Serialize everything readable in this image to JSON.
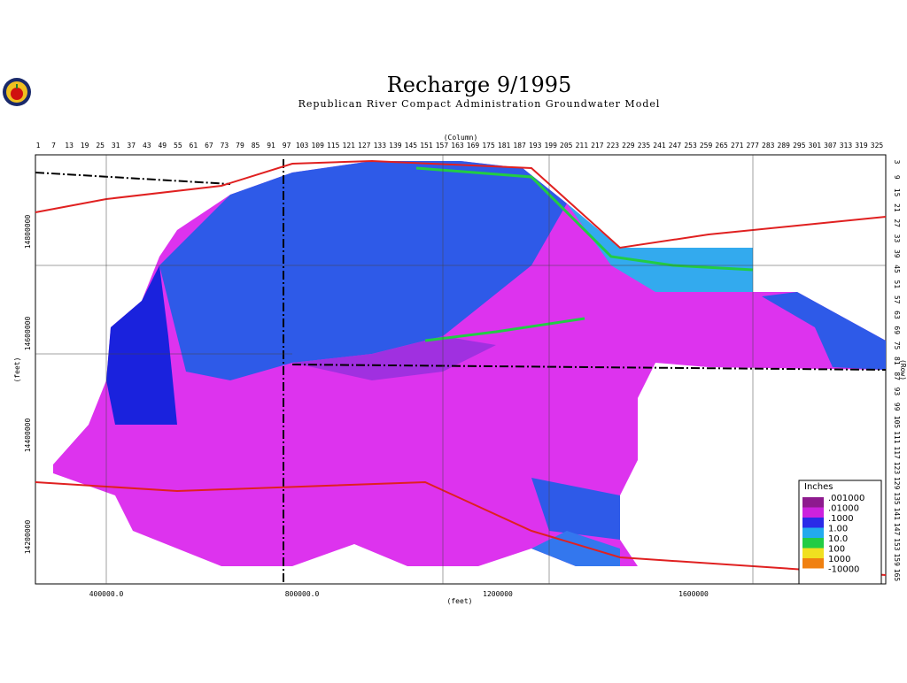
{
  "header": {
    "title": "Recharge 9/1995",
    "subtitle": "Republican River Compact Administration Groundwater Model"
  },
  "map": {
    "column_axis_label": "(Column)",
    "columns": [
      1,
      7,
      13,
      19,
      25,
      31,
      37,
      43,
      49,
      55,
      61,
      67,
      73,
      79,
      85,
      91,
      97,
      103,
      109,
      115,
      121,
      127,
      133,
      139,
      145,
      151,
      157,
      163,
      169,
      175,
      181,
      187,
      193,
      199,
      205,
      211,
      217,
      223,
      229,
      235,
      241,
      247,
      253,
      259,
      265,
      271,
      277,
      283,
      289,
      295,
      301,
      307,
      313,
      319,
      325
    ],
    "row_axis_label": "(Row)",
    "rows": [
      3,
      9,
      15,
      21,
      27,
      33,
      39,
      45,
      51,
      57,
      63,
      69,
      75,
      81,
      87,
      93,
      99,
      105,
      111,
      117,
      123,
      129,
      135,
      141,
      147,
      153,
      159,
      165
    ],
    "y_axis_label": "(feet)",
    "y_ticks": [
      "14800000",
      "14600000",
      "14400000",
      "14200000"
    ],
    "x_axis_label": "(feet)",
    "x_ticks": [
      "400000.0",
      "800000.0",
      "1200000",
      "1600000"
    ]
  },
  "legend": {
    "title": "Inches",
    "items": [
      {
        "label": ".001000",
        "color": "#8e1a8e"
      },
      {
        "label": ".01000",
        "color": "#cc22dd"
      },
      {
        "label": ".1000",
        "color": "#2a2ae8"
      },
      {
        "label": "1.00",
        "color": "#22aaee"
      },
      {
        "label": "10.0",
        "color": "#22cc44"
      },
      {
        "label": "100",
        "color": "#f0e020"
      },
      {
        "label": "1000",
        "color": "#f08010"
      },
      {
        "label": "-10000",
        "color": "#ffffff"
      }
    ]
  }
}
